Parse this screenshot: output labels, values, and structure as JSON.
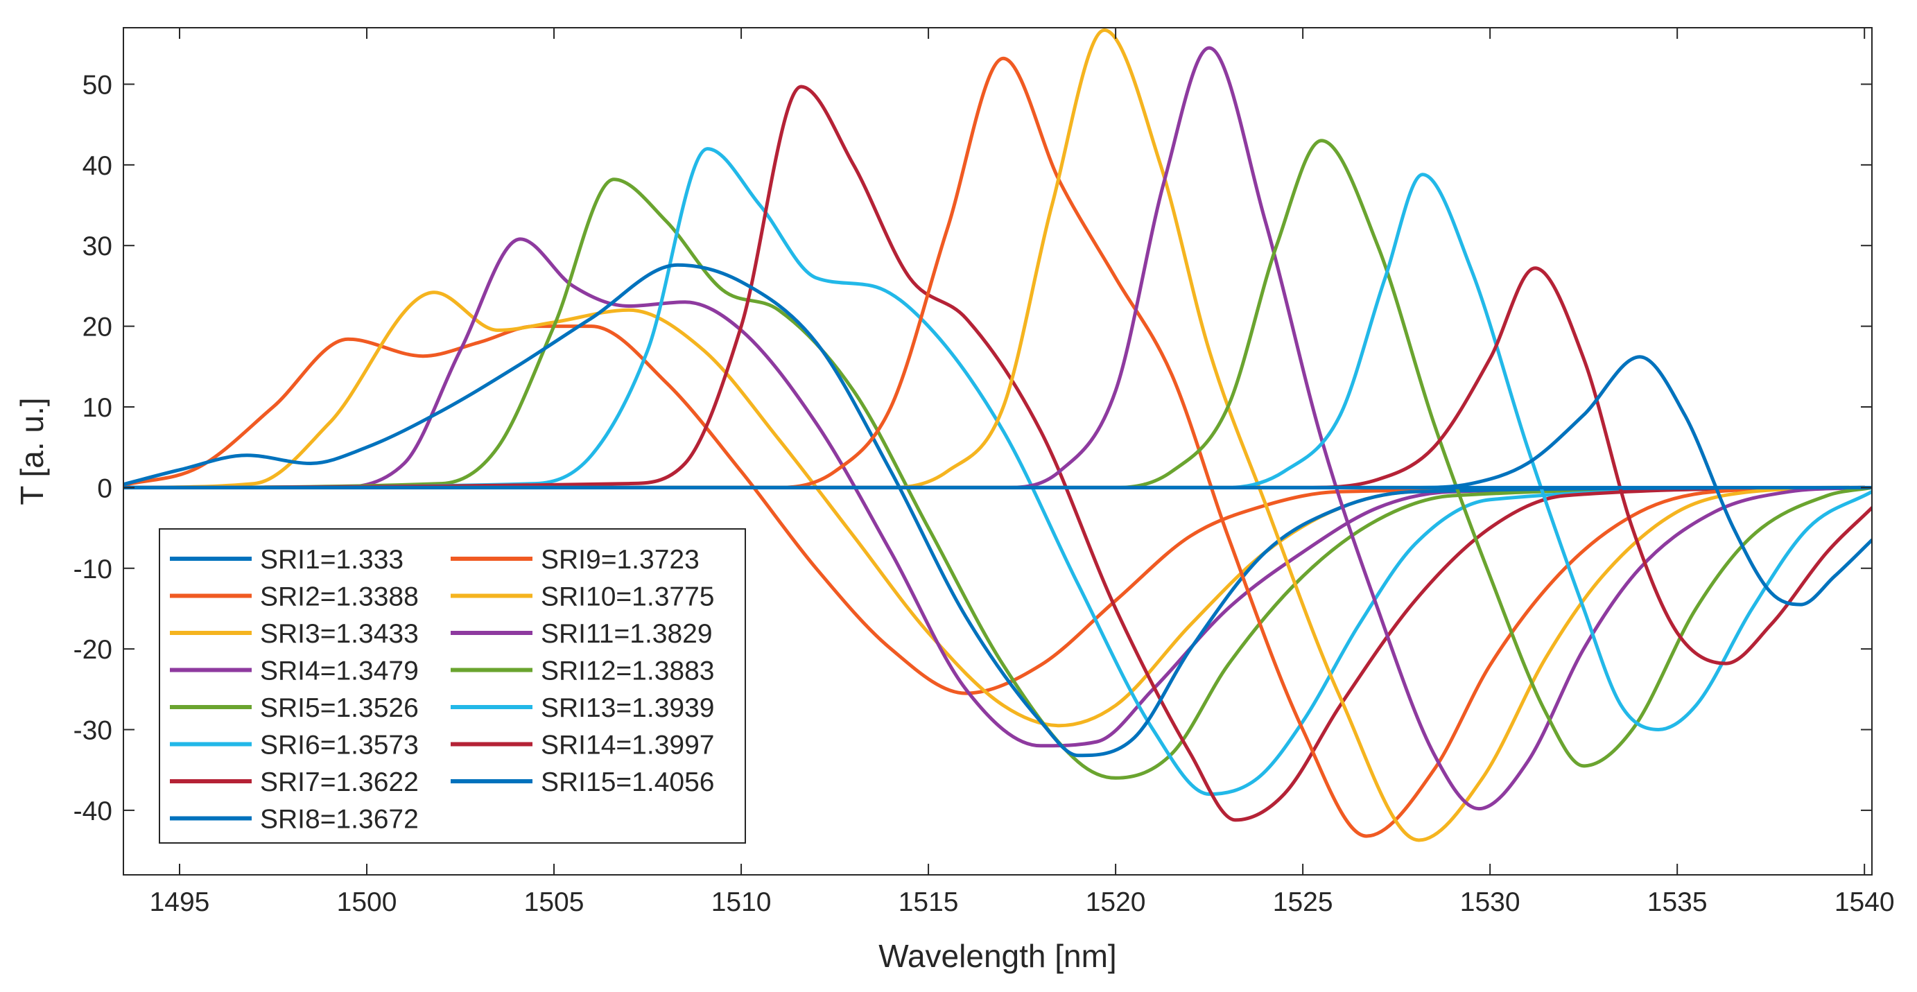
{
  "chart_data": {
    "type": "line",
    "title": "",
    "xlabel": "Wavelength [nm]",
    "ylabel": "T [a. u.]",
    "xlim": [
      1493.5,
      1540.2
    ],
    "ylim": [
      -48,
      57
    ],
    "xticks": [
      1495,
      1500,
      1505,
      1510,
      1515,
      1520,
      1525,
      1530,
      1535,
      1540
    ],
    "yticks": [
      50,
      40,
      30,
      20,
      10,
      0,
      -10,
      -20,
      -30,
      -40
    ],
    "grid": false,
    "legend_position": "bottom-left",
    "series": [
      {
        "name": "SRI1=1.333",
        "color": "#0072bd",
        "points": [
          [
            1493.5,
            0
          ],
          [
            1540.2,
            0
          ]
        ]
      },
      {
        "name": "SRI2=1.3388",
        "color": "#f05a22",
        "points": [
          [
            1493.5,
            0.3
          ],
          [
            1495.5,
            2.5
          ],
          [
            1497.5,
            10
          ],
          [
            1499.5,
            18.4
          ],
          [
            1501.5,
            16.3
          ],
          [
            1503,
            18
          ],
          [
            1504.5,
            20
          ],
          [
            1506,
            20
          ],
          [
            1508,
            13
          ],
          [
            1510,
            2
          ],
          [
            1512,
            -10
          ],
          [
            1514,
            -20
          ],
          [
            1516,
            -25.5
          ],
          [
            1518,
            -22
          ],
          [
            1520,
            -14
          ],
          [
            1522,
            -6
          ],
          [
            1524,
            -2.2
          ],
          [
            1526,
            -0.5
          ],
          [
            1540,
            0
          ]
        ]
      },
      {
        "name": "SRI3=1.3433",
        "color": "#f5b41f",
        "points": [
          [
            1493.5,
            0
          ],
          [
            1497,
            0.5
          ],
          [
            1499,
            8
          ],
          [
            1501.8,
            24.2
          ],
          [
            1503.5,
            19.5
          ],
          [
            1505,
            20.5
          ],
          [
            1507,
            22
          ],
          [
            1509,
            17
          ],
          [
            1511,
            6
          ],
          [
            1513,
            -6
          ],
          [
            1515,
            -18
          ],
          [
            1517,
            -27
          ],
          [
            1518.5,
            -29.5
          ],
          [
            1520,
            -27
          ],
          [
            1522,
            -17
          ],
          [
            1524,
            -8
          ],
          [
            1526,
            -2.5
          ],
          [
            1528,
            -0.5
          ],
          [
            1540,
            0
          ]
        ]
      },
      {
        "name": "SRI4=1.3479",
        "color": "#8e3a9f",
        "points": [
          [
            1493.5,
            0
          ],
          [
            1499,
            0
          ],
          [
            1501,
            3
          ],
          [
            1502.5,
            17
          ],
          [
            1504.1,
            30.8
          ],
          [
            1505.5,
            25
          ],
          [
            1507,
            22.5
          ],
          [
            1508.5,
            23
          ],
          [
            1510,
            19.5
          ],
          [
            1512,
            8
          ],
          [
            1514,
            -8
          ],
          [
            1516,
            -25
          ],
          [
            1518,
            -32
          ],
          [
            1519.5,
            -31.5
          ],
          [
            1521,
            -25
          ],
          [
            1523,
            -15
          ],
          [
            1525,
            -8
          ],
          [
            1527,
            -2.5
          ],
          [
            1529,
            -0.5
          ],
          [
            1540,
            0
          ]
        ]
      },
      {
        "name": "SRI5=1.3526",
        "color": "#6aa42f",
        "points": [
          [
            1493.5,
            0
          ],
          [
            1502,
            0.5
          ],
          [
            1503.5,
            5
          ],
          [
            1505,
            20
          ],
          [
            1506.6,
            38.2
          ],
          [
            1508,
            33
          ],
          [
            1509.5,
            24.5
          ],
          [
            1511,
            22
          ],
          [
            1513,
            12
          ],
          [
            1515,
            -5
          ],
          [
            1517,
            -22
          ],
          [
            1519,
            -34
          ],
          [
            1520,
            -36
          ],
          [
            1521.5,
            -33
          ],
          [
            1523,
            -22
          ],
          [
            1525,
            -11
          ],
          [
            1527,
            -4
          ],
          [
            1529,
            -1
          ],
          [
            1540,
            0
          ]
        ]
      },
      {
        "name": "SRI6=1.3573",
        "color": "#22b8e8",
        "points": [
          [
            1493.5,
            0
          ],
          [
            1504.5,
            0.5
          ],
          [
            1506,
            4
          ],
          [
            1507.5,
            17
          ],
          [
            1509.1,
            42
          ],
          [
            1510.5,
            35
          ],
          [
            1512,
            26
          ],
          [
            1513.5,
            25
          ],
          [
            1515,
            20
          ],
          [
            1517,
            7
          ],
          [
            1519,
            -12
          ],
          [
            1521,
            -30
          ],
          [
            1522.5,
            -38
          ],
          [
            1523.8,
            -36
          ],
          [
            1525,
            -29
          ],
          [
            1526.5,
            -17
          ],
          [
            1528,
            -7
          ],
          [
            1530,
            -1.5
          ],
          [
            1540,
            0
          ]
        ]
      },
      {
        "name": "SRI7=1.3622",
        "color": "#b52236",
        "points": [
          [
            1493.5,
            0
          ],
          [
            1507,
            0.5
          ],
          [
            1508.5,
            3
          ],
          [
            1510,
            20
          ],
          [
            1511.6,
            49.7
          ],
          [
            1513,
            40
          ],
          [
            1514.5,
            26
          ],
          [
            1516,
            21
          ],
          [
            1518,
            7
          ],
          [
            1520,
            -15
          ],
          [
            1522,
            -33
          ],
          [
            1523.2,
            -41.2
          ],
          [
            1524.5,
            -38
          ],
          [
            1526,
            -27
          ],
          [
            1528,
            -14
          ],
          [
            1530,
            -5
          ],
          [
            1532,
            -1
          ],
          [
            1540,
            0
          ]
        ]
      },
      {
        "name": "SRI8=1.3672",
        "color": "#0072bd",
        "points": [
          [
            1493.5,
            0.4
          ],
          [
            1495,
            2.2
          ],
          [
            1496.8,
            4
          ],
          [
            1498.5,
            3
          ],
          [
            1500,
            5
          ],
          [
            1502,
            9.5
          ],
          [
            1504,
            15
          ],
          [
            1506,
            21
          ],
          [
            1508.3,
            27.6
          ],
          [
            1510,
            25.5
          ],
          [
            1512,
            18
          ],
          [
            1514,
            2
          ],
          [
            1516,
            -16
          ],
          [
            1518,
            -29
          ],
          [
            1519,
            -33.2
          ],
          [
            1520.5,
            -31
          ],
          [
            1522,
            -20
          ],
          [
            1524,
            -8
          ],
          [
            1526,
            -2.5
          ],
          [
            1528,
            -0.5
          ],
          [
            1540,
            0
          ]
        ]
      },
      {
        "name": "SRI9=1.3723",
        "color": "#f05a22",
        "points": [
          [
            1493.5,
            0
          ],
          [
            1511,
            0
          ],
          [
            1512.5,
            2
          ],
          [
            1514,
            10
          ],
          [
            1515.5,
            32
          ],
          [
            1517,
            53.2
          ],
          [
            1518.5,
            38
          ],
          [
            1520,
            26
          ],
          [
            1521.5,
            14
          ],
          [
            1523,
            -6
          ],
          [
            1525,
            -30
          ],
          [
            1526.7,
            -43.2
          ],
          [
            1528.5,
            -35
          ],
          [
            1530,
            -22
          ],
          [
            1532,
            -10
          ],
          [
            1534,
            -3
          ],
          [
            1536,
            -0.5
          ],
          [
            1540,
            0
          ]
        ]
      },
      {
        "name": "SRI10=1.3775",
        "color": "#f5b41f",
        "points": [
          [
            1493.5,
            0
          ],
          [
            1514,
            0
          ],
          [
            1515.5,
            2
          ],
          [
            1517,
            10
          ],
          [
            1518.3,
            35
          ],
          [
            1519.7,
            56.7
          ],
          [
            1521.2,
            40
          ],
          [
            1522.5,
            17
          ],
          [
            1524,
            -2
          ],
          [
            1526,
            -26
          ],
          [
            1528.1,
            -43.7
          ],
          [
            1529.8,
            -36
          ],
          [
            1531.5,
            -21
          ],
          [
            1533,
            -11
          ],
          [
            1535,
            -3
          ],
          [
            1537,
            -0.5
          ],
          [
            1540,
            0
          ]
        ]
      },
      {
        "name": "SRI11=1.3829",
        "color": "#8e3a9f",
        "points": [
          [
            1493.5,
            0
          ],
          [
            1517,
            0
          ],
          [
            1518.5,
            2
          ],
          [
            1520,
            12
          ],
          [
            1521.3,
            38
          ],
          [
            1522.5,
            54.5
          ],
          [
            1524,
            33
          ],
          [
            1525.5,
            6
          ],
          [
            1527,
            -15
          ],
          [
            1528.5,
            -33
          ],
          [
            1529.7,
            -39.8
          ],
          [
            1531,
            -34
          ],
          [
            1532.5,
            -20
          ],
          [
            1534,
            -10
          ],
          [
            1536,
            -3
          ],
          [
            1538,
            -0.5
          ],
          [
            1540,
            0
          ]
        ]
      },
      {
        "name": "SRI12=1.3883",
        "color": "#6aa42f",
        "points": [
          [
            1493.5,
            0
          ],
          [
            1520,
            0
          ],
          [
            1521.5,
            2
          ],
          [
            1523,
            10
          ],
          [
            1524.3,
            30
          ],
          [
            1525.5,
            43
          ],
          [
            1527,
            30
          ],
          [
            1528.5,
            8
          ],
          [
            1530,
            -11
          ],
          [
            1531.5,
            -28
          ],
          [
            1532.5,
            -34.5
          ],
          [
            1533.8,
            -30
          ],
          [
            1535.5,
            -15
          ],
          [
            1537,
            -6
          ],
          [
            1539,
            -1
          ],
          [
            1540.2,
            0
          ]
        ]
      },
      {
        "name": "SRI13=1.3939",
        "color": "#22b8e8",
        "points": [
          [
            1493.5,
            0
          ],
          [
            1523,
            0
          ],
          [
            1524.5,
            2
          ],
          [
            1526,
            9
          ],
          [
            1527.2,
            26
          ],
          [
            1528.2,
            38.8
          ],
          [
            1529.5,
            27
          ],
          [
            1531,
            5
          ],
          [
            1532.5,
            -15
          ],
          [
            1533.5,
            -27
          ],
          [
            1534.5,
            -30
          ],
          [
            1535.5,
            -27
          ],
          [
            1537,
            -15
          ],
          [
            1538.5,
            -5
          ],
          [
            1540.2,
            -0.5
          ]
        ]
      },
      {
        "name": "SRI14=1.3997",
        "color": "#b52236",
        "points": [
          [
            1493.5,
            0
          ],
          [
            1525,
            0
          ],
          [
            1527,
            1
          ],
          [
            1528.5,
            5
          ],
          [
            1530,
            16
          ],
          [
            1531.2,
            27.2
          ],
          [
            1532.5,
            16
          ],
          [
            1533.8,
            -5
          ],
          [
            1535,
            -18
          ],
          [
            1536.3,
            -21.8
          ],
          [
            1537.5,
            -17
          ],
          [
            1539,
            -8
          ],
          [
            1540.2,
            -2.5
          ]
        ]
      },
      {
        "name": "SRI15=1.4056",
        "color": "#0072bd",
        "points": [
          [
            1493.5,
            0
          ],
          [
            1528,
            0
          ],
          [
            1529.5,
            0.5
          ],
          [
            1531,
            3
          ],
          [
            1532.5,
            9
          ],
          [
            1534,
            16.2
          ],
          [
            1535.2,
            9
          ],
          [
            1536.5,
            -5
          ],
          [
            1537.5,
            -13
          ],
          [
            1538.3,
            -14.5
          ],
          [
            1539.2,
            -11
          ],
          [
            1540.2,
            -6.5
          ]
        ]
      }
    ]
  }
}
